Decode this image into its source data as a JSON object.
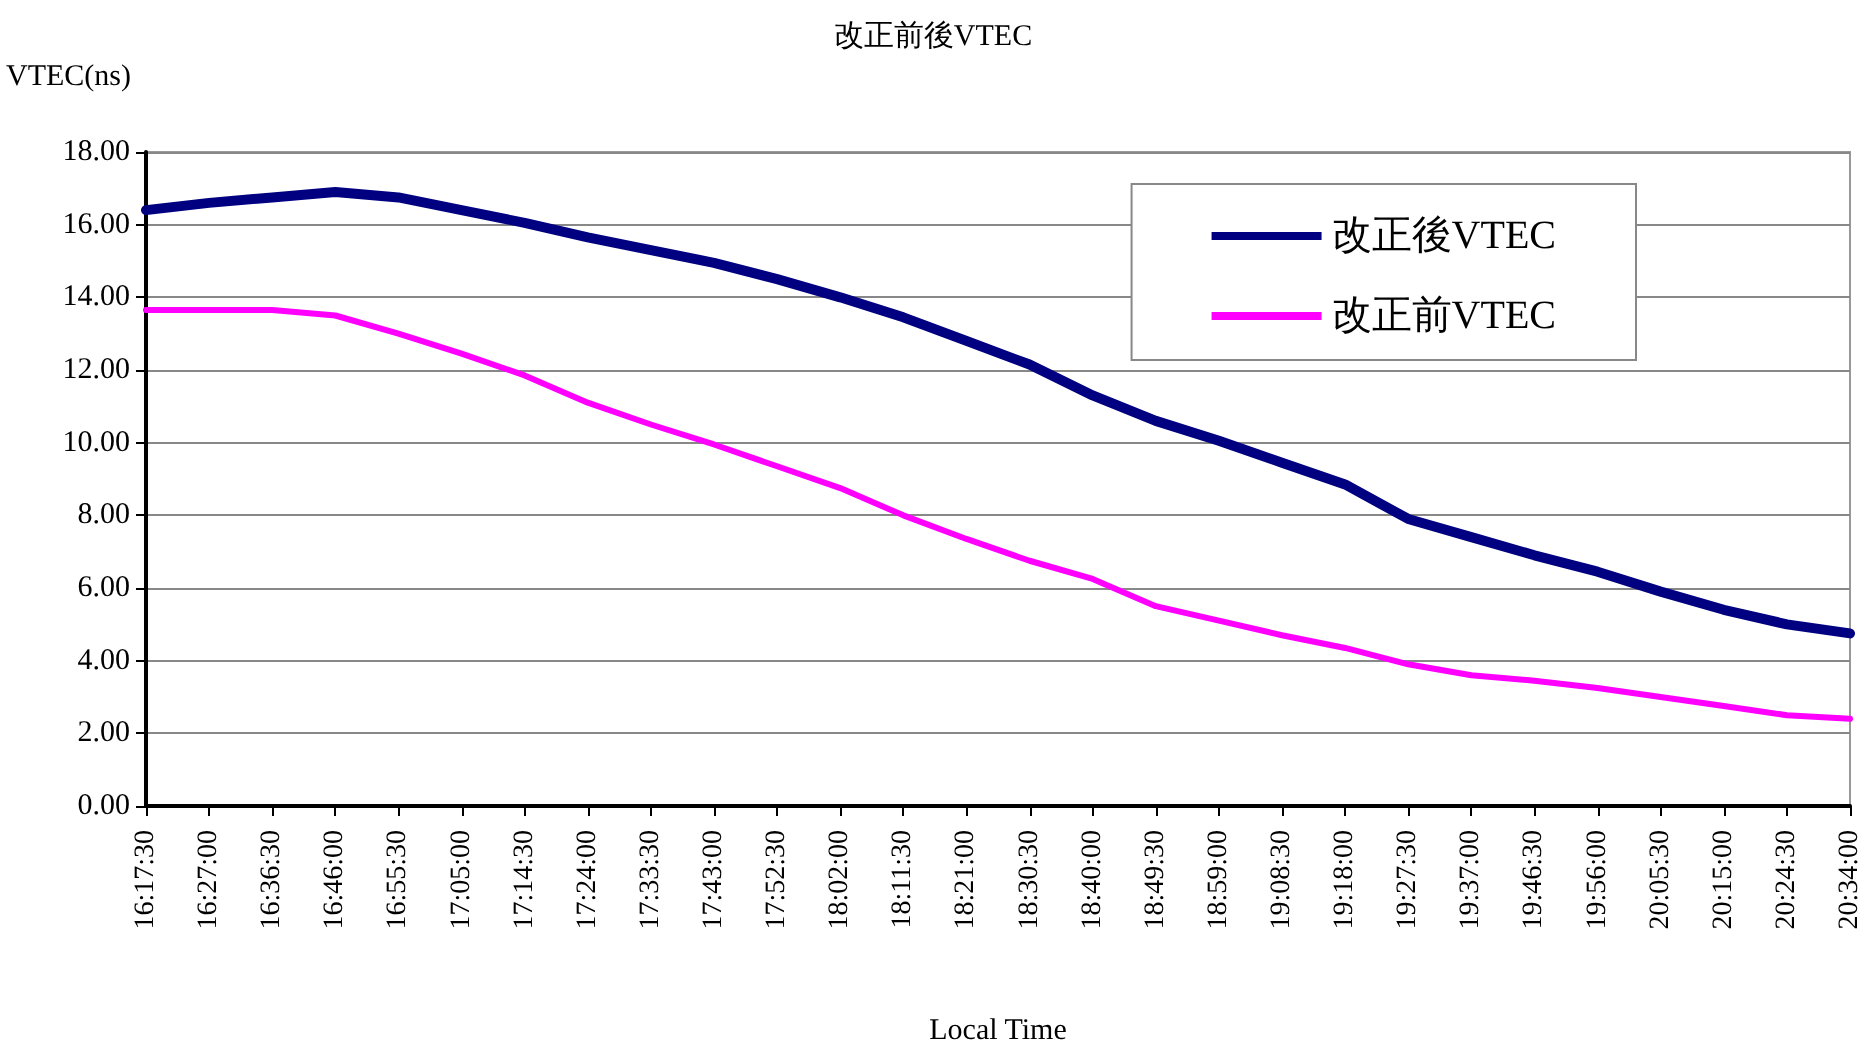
{
  "chart_data": {
    "type": "line",
    "title": "改正前後VTEC",
    "xlabel": "Local Time",
    "ylabel": "VTEC(ns)",
    "categories": [
      "16:17:30",
      "16:27:00",
      "16:36:30",
      "16:46:00",
      "16:55:30",
      "17:05:00",
      "17:14:30",
      "17:24:00",
      "17:33:30",
      "17:43:00",
      "17:52:30",
      "18:02:00",
      "18:11:30",
      "18:21:00",
      "18:30:30",
      "18:40:00",
      "18:49:30",
      "18:59:00",
      "19:08:30",
      "19:18:00",
      "19:27:30",
      "19:37:00",
      "19:46:30",
      "19:56:00",
      "20:05:30",
      "20:15:00",
      "20:24:30",
      "20:34:00"
    ],
    "series": [
      {
        "name": "改正後VTEC",
        "color": "#000080",
        "values": [
          16.4,
          16.6,
          16.75,
          16.9,
          16.75,
          16.4,
          16.05,
          15.65,
          15.3,
          14.95,
          14.5,
          14.0,
          13.45,
          12.8,
          12.15,
          11.3,
          10.6,
          10.05,
          9.45,
          8.85,
          7.9,
          7.4,
          6.9,
          6.45,
          5.9,
          5.4,
          5.0,
          4.75
        ]
      },
      {
        "name": "改正前VTEC",
        "color": "#ff00ff",
        "values": [
          13.65,
          13.65,
          13.65,
          13.5,
          13.0,
          12.45,
          11.85,
          11.1,
          10.5,
          9.95,
          9.35,
          8.75,
          8.0,
          7.35,
          6.75,
          6.25,
          5.5,
          5.1,
          4.7,
          4.35,
          3.9,
          3.6,
          3.45,
          3.25,
          3.0,
          2.75,
          2.5,
          2.4
        ]
      }
    ],
    "ylim": [
      0,
      18
    ],
    "yticks": [
      {
        "value": 0,
        "label": "0.00"
      },
      {
        "value": 2,
        "label": "2.00"
      },
      {
        "value": 4,
        "label": "4.00"
      },
      {
        "value": 6,
        "label": "6.00"
      },
      {
        "value": 8,
        "label": "8.00"
      },
      {
        "value": 10,
        "label": "10.00"
      },
      {
        "value": 12,
        "label": "12.00"
      },
      {
        "value": 14,
        "label": "14.00"
      },
      {
        "value": 16,
        "label": "16.00"
      },
      {
        "value": 18,
        "label": "18.00"
      }
    ],
    "grid": "y",
    "legend": "top right",
    "marker": "none",
    "line_style": "solid"
  }
}
